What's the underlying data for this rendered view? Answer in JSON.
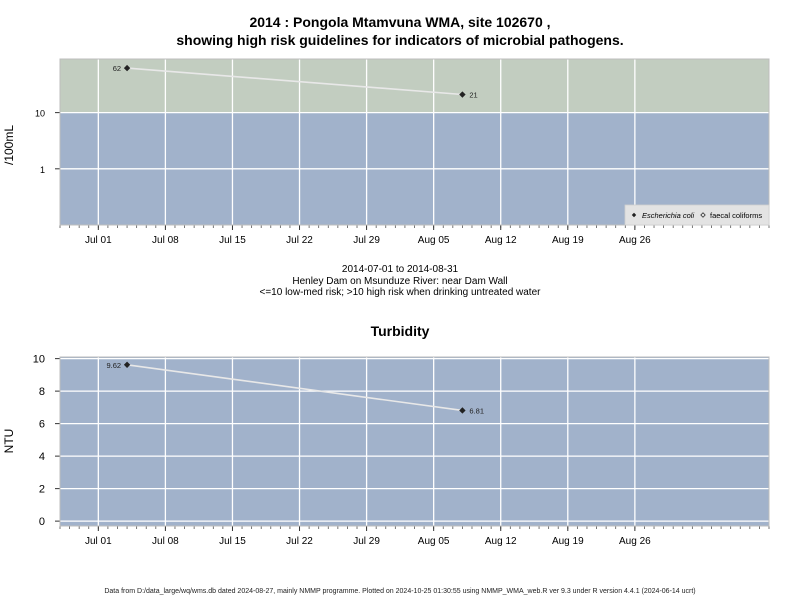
{
  "titles": {
    "line1": "2014 : Pongola Mtamvuna WMA, site 102670 ,",
    "line2": "showing high risk guidelines for indicators of microbial pathogens.",
    "period": "2014-07-01 to 2014-08-31",
    "site": "Henley Dam on Msunduze River: near Dam Wall",
    "risk_note": "<=10 low-med risk; >10 high risk when drinking untreated water",
    "turbidity": "Turbidity"
  },
  "footer": "Data from D:/data_large/wq/wms.db dated 2024-08-27, mainly NMMP programme. Plotted on 2024-10-25 01:30:55 using NMMP_WMA_web.R ver 9.3 under R version 4.4.1 (2024-06-14 ucrt)",
  "colors": {
    "high_risk_band": "#c2cdc0",
    "low_risk_band": "#a1b2cb",
    "series_line": "#e8e8e8",
    "point": "#222222",
    "grid": "#ffffff"
  },
  "chart_data": [
    {
      "type": "line",
      "ylabel": "/100mL",
      "y_scale": "log",
      "ylim": [
        0.1,
        90
      ],
      "xlim": [
        "2014-06-27",
        "2014-09-09"
      ],
      "x_ticks": [
        "Jul 01",
        "Jul 08",
        "Jul 15",
        "Jul 22",
        "Jul 29",
        "Aug 05",
        "Aug 12",
        "Aug 19",
        "Aug 26"
      ],
      "x_tick_dates": [
        "2014-07-01",
        "2014-07-08",
        "2014-07-15",
        "2014-07-22",
        "2014-07-29",
        "2014-08-05",
        "2014-08-12",
        "2014-08-19",
        "2014-08-26"
      ],
      "y_ticks": [
        "1",
        "10"
      ],
      "y_tick_values": [
        1,
        10
      ],
      "bands": [
        {
          "from": 10,
          "to": 90,
          "color": "#c2cdc0"
        },
        {
          "from": 0.1,
          "to": 10,
          "color": "#a1b2cb"
        }
      ],
      "grid": true,
      "legend": {
        "position": "bottom-right",
        "entries": [
          {
            "label": "Escherichia coli",
            "marker": "filled-diamond",
            "italic": true
          },
          {
            "label": "faecal coliforms",
            "marker": "open-diamond",
            "italic": false
          }
        ]
      },
      "series": [
        {
          "name": "Escherichia coli",
          "x": [
            "2014-07-04",
            "2014-08-08"
          ],
          "y": [
            62,
            21
          ],
          "labels": [
            "62",
            "21"
          ]
        }
      ]
    },
    {
      "type": "line",
      "title": "Turbidity",
      "ylabel": "NTU",
      "y_scale": "linear",
      "ylim": [
        -0.3,
        10.1
      ],
      "xlim": [
        "2014-06-27",
        "2014-09-09"
      ],
      "x_ticks": [
        "Jul 01",
        "Jul 08",
        "Jul 15",
        "Jul 22",
        "Jul 29",
        "Aug 05",
        "Aug 12",
        "Aug 19",
        "Aug 26"
      ],
      "x_tick_dates": [
        "2014-07-01",
        "2014-07-08",
        "2014-07-15",
        "2014-07-22",
        "2014-07-29",
        "2014-08-05",
        "2014-08-12",
        "2014-08-19",
        "2014-08-26"
      ],
      "y_ticks": [
        "0",
        "2",
        "4",
        "6",
        "8",
        "10"
      ],
      "y_tick_values": [
        0,
        2,
        4,
        6,
        8,
        10
      ],
      "grid": true,
      "series": [
        {
          "name": "Turbidity",
          "x": [
            "2014-07-04",
            "2014-08-08"
          ],
          "y": [
            9.62,
            6.81
          ],
          "labels": [
            "9.62",
            "6.81"
          ]
        }
      ]
    }
  ]
}
